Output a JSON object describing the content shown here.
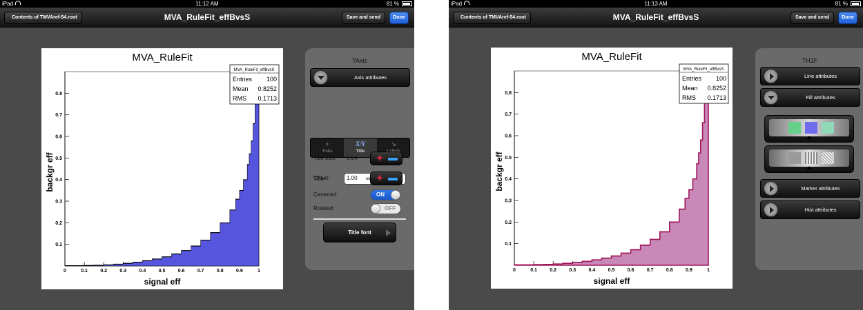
{
  "left": {
    "status": {
      "carrier": "iPad",
      "time": "11:12 AM",
      "battery": "81 %"
    },
    "nav": {
      "back": "Contents of TMVAref-54.root",
      "title": "MVA_RuleFit_effBvsS",
      "save": "Save and send",
      "done": "Done"
    },
    "plot": {
      "title": "MVA_RuleFit",
      "xlabel": "signal eff",
      "ylabel": "backgr eff",
      "stats": {
        "name": "MVA_RuleFit_effBvsS",
        "entries_label": "Entries",
        "entries": "100",
        "mean_label": "Mean",
        "mean": "0.8252",
        "rms_label": "RMS",
        "rms": "0.1713"
      }
    },
    "panel": {
      "header": "TAxis",
      "axis_attr": "Axis attributes",
      "tabs": [
        {
          "label": "Ticks",
          "glyph": "+"
        },
        {
          "label": "Title",
          "glyph": "X/Y"
        },
        {
          "label": "Labels",
          "glyph": "↘"
        }
      ],
      "title_label": "Title:",
      "title_value": "signal eff",
      "title_size_label": "Title size:",
      "title_size": "0.04",
      "offset_label": "Offset:",
      "offset": "1.00",
      "centered_label": "Centered:",
      "centered_state": "ON",
      "rotated_label": "Rotated:",
      "rotated_state": "OFF",
      "title_font": "Title font"
    }
  },
  "right": {
    "status": {
      "carrier": "iPad",
      "time": "11:13 AM",
      "battery": "81 %"
    },
    "nav": {
      "back": "Contents of TMVAref-54.root",
      "title": "MVA_RuleFit_effBvsS",
      "save": "Save and send",
      "done": "Done"
    },
    "plot": {
      "title": "MVA_RuleFit",
      "xlabel": "signal eff",
      "ylabel": "backgr eff",
      "stats": {
        "name": "MVA_RuleFit_effBvsS",
        "entries_label": "Entries",
        "entries": "100",
        "mean_label": "Mean",
        "mean": "0.8252",
        "rms_label": "RMS",
        "rms": "0.1713"
      }
    },
    "panel": {
      "header": "TH1F",
      "line_attr": "Line attributes",
      "fill_attr": "Fill attributes",
      "marker_attr": "Marker attributes",
      "hist_attr": "Hist attributes"
    }
  },
  "colors": {
    "left_fill": "#5555dd",
    "left_line": "#000000",
    "right_fill": "#c888b8",
    "right_line": "#a0185a",
    "done_blue": "#2f6fe0"
  },
  "chart_data": {
    "type": "area",
    "series_name": "MVA_RuleFit_effBvsS",
    "xlim": [
      0,
      1
    ],
    "ylim": [
      0,
      0.9
    ],
    "x_ticks": [
      "0",
      "0.1",
      "0.2",
      "0.3",
      "0.4",
      "0.5",
      "0.6",
      "0.7",
      "0.8",
      "0.9",
      "1"
    ],
    "y_ticks": [
      "0.1",
      "0.2",
      "0.3",
      "0.4",
      "0.5",
      "0.6",
      "0.7",
      "0.8"
    ],
    "x": [
      0,
      0.05,
      0.1,
      0.15,
      0.2,
      0.25,
      0.3,
      0.35,
      0.4,
      0.45,
      0.5,
      0.55,
      0.6,
      0.65,
      0.7,
      0.75,
      0.8,
      0.85,
      0.88,
      0.9,
      0.92,
      0.94,
      0.95,
      0.96,
      0.97,
      0.98,
      0.99,
      1.0
    ],
    "values": [
      0.002,
      0.002,
      0.003,
      0.004,
      0.006,
      0.009,
      0.013,
      0.018,
      0.025,
      0.033,
      0.043,
      0.056,
      0.072,
      0.093,
      0.12,
      0.155,
      0.2,
      0.26,
      0.31,
      0.35,
      0.4,
      0.47,
      0.52,
      0.58,
      0.66,
      0.76,
      0.85,
      0.0
    ]
  }
}
